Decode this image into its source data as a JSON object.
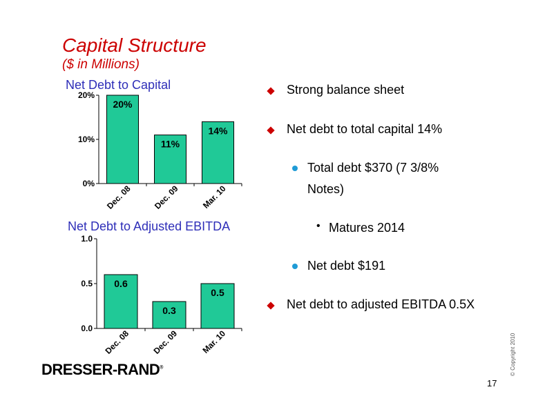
{
  "slide": {
    "title": "Capital Structure",
    "subtitle": "($ in Millions)",
    "page_number": "17",
    "copyright": "© Copyright 2010",
    "logo": "DRESSER-RAND",
    "logo_mark": "®"
  },
  "colors": {
    "title": "#cc0000",
    "chart_label": "#2e2eb8",
    "bar_fill": "#20c997",
    "diamond": "#cc0000",
    "dot": "#1f9bd6"
  },
  "bullets": [
    {
      "type": "diamond",
      "text": "Strong balance sheet"
    },
    {
      "type": "diamond",
      "text": "Net debt to total capital 14%"
    },
    {
      "type": "dot",
      "text": "Total debt $370 (7 3/8%"
    },
    {
      "type": "none",
      "text": "Notes)"
    },
    {
      "type": "small",
      "text": "Matures 2014"
    },
    {
      "type": "dot",
      "text": "Net debt $191"
    },
    {
      "type": "diamond",
      "text": "Net debt to adjusted EBITDA 0.5X"
    }
  ],
  "chart_data": [
    {
      "type": "bar",
      "label": "Net Debt to Capital",
      "categories": [
        "Dec. 08",
        "Dec. 09",
        "Mar. 10"
      ],
      "values": [
        20,
        11,
        14
      ],
      "data_labels": [
        "20%",
        "11%",
        "14%"
      ],
      "yticks": [
        0,
        10,
        20
      ],
      "ytick_labels": [
        "0%",
        "10%",
        "20%"
      ],
      "ylim": [
        0,
        20
      ]
    },
    {
      "type": "bar",
      "label": "Net Debt to Adjusted EBITDA",
      "categories": [
        "Dec. 08",
        "Dec. 09",
        "Mar. 10"
      ],
      "values": [
        0.6,
        0.3,
        0.5
      ],
      "data_labels": [
        "0.6",
        "0.3",
        "0.5"
      ],
      "yticks": [
        0,
        0.5,
        1.0
      ],
      "ytick_labels": [
        "0.0",
        "0.5",
        "1.0"
      ],
      "ylim": [
        0,
        1.0
      ]
    }
  ]
}
